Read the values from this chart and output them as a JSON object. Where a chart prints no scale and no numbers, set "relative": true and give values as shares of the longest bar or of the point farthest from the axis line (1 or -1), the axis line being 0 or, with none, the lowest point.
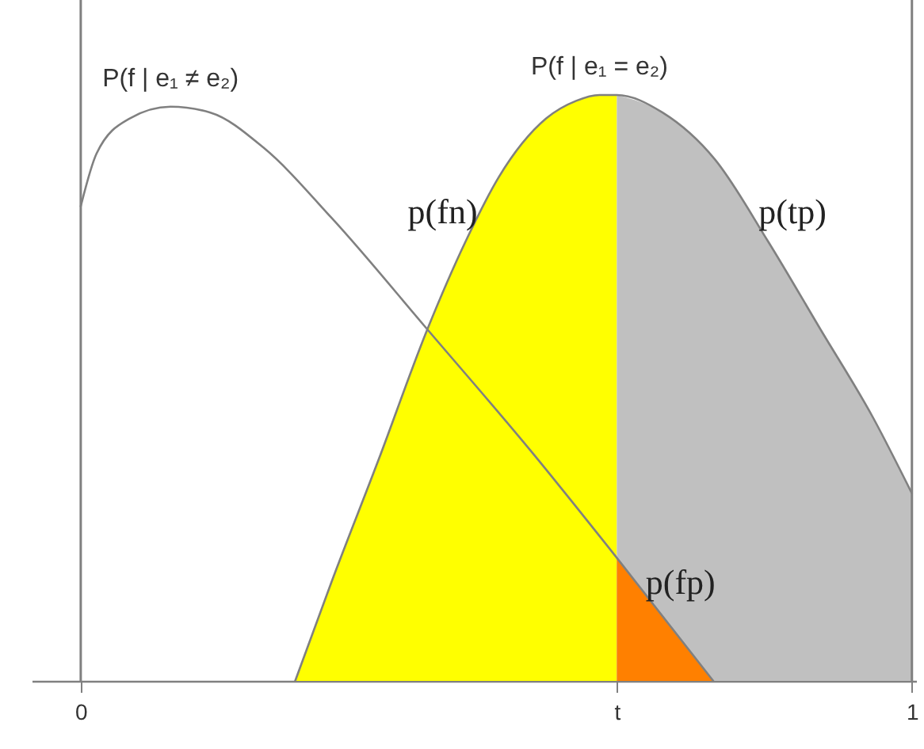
{
  "chart_data": {
    "type": "area",
    "relative": true,
    "xlim": [
      -0.059,
      1.005
    ],
    "xticks": [
      0,
      {
        "value": 0.645,
        "label": "t"
      },
      1
    ],
    "ref_lines": [
      {
        "axis": "x",
        "value": 0,
        "color": "#808080"
      },
      {
        "axis": "x",
        "value": 1,
        "color": "#808080"
      }
    ],
    "series": [
      {
        "name": "p(fn)",
        "color": "#ffff00",
        "x": [
          0.258,
          0.302,
          0.359,
          0.417,
          0.463,
          0.503,
          0.56,
          0.596,
          0.624,
          0.645
        ],
        "values": [
          0,
          0.17,
          0.38,
          0.6,
          0.75,
          0.86,
          0.96,
          0.99,
          1.0,
          1.0
        ]
      },
      {
        "name": "p(tp)",
        "color": "#c0c0c0",
        "x": [
          0.645,
          0.7,
          0.763,
          0.827,
          0.89,
          0.953,
          1.0
        ],
        "values": [
          1.0,
          0.97,
          0.89,
          0.75,
          0.6,
          0.45,
          0.32
        ]
      },
      {
        "name": "p(fp)",
        "color": "#ff8000",
        "x": [
          0.645,
          0.761
        ],
        "values": [
          0.21,
          0
        ]
      },
      {
        "name": "P(f | e₁ ≠ e₂)",
        "type": "line",
        "color": "#808080",
        "x": [
          0,
          0.019,
          0.059,
          0.108,
          0.156,
          0.22,
          0.302,
          0.417,
          0.543,
          0.645,
          0.761
        ],
        "values": [
          0.81,
          0.9,
          0.96,
          0.98,
          0.97,
          0.91,
          0.79,
          0.6,
          0.39,
          0.21,
          0
        ]
      },
      {
        "name": "P(f | e₁ = e₂)",
        "type": "line",
        "color": "#808080",
        "x": [
          0.258,
          0.302,
          0.359,
          0.417,
          0.463,
          0.503,
          0.56,
          0.596,
          0.624,
          0.645,
          0.7,
          0.763,
          0.827,
          0.89,
          0.953,
          1.0
        ],
        "values": [
          0,
          0.17,
          0.38,
          0.6,
          0.75,
          0.86,
          0.96,
          0.99,
          1.0,
          1.0,
          0.97,
          0.89,
          0.75,
          0.6,
          0.45,
          0.32
        ]
      }
    ]
  }
}
